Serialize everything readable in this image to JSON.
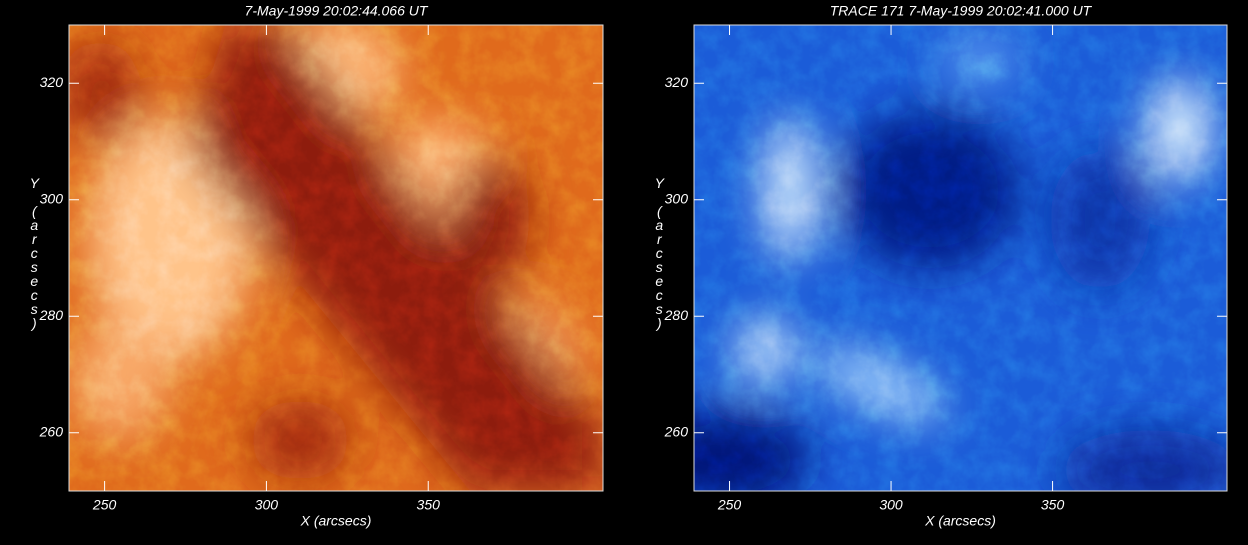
{
  "chart_data": [
    {
      "type": "image",
      "title": "7-May-1999 20:02:44.066 UT",
      "x_label": "X (arcsecs)",
      "y_label": "Y (arcsecs)",
      "xlim": [
        239,
        404
      ],
      "ylim": [
        250,
        330
      ],
      "xticks": [
        250,
        300,
        350
      ],
      "yticks": [
        260,
        280,
        300,
        320
      ]
    },
    {
      "type": "image",
      "title": "TRACE  171  7-May-1999 20:02:41.000 UT",
      "x_label": "X (arcsecs)",
      "y_label": "Y (arcsecs)",
      "xlim": [
        239,
        404
      ],
      "ylim": [
        250,
        330
      ],
      "xticks": [
        250,
        300,
        350
      ],
      "yticks": [
        260,
        280,
        300,
        320
      ]
    }
  ]
}
